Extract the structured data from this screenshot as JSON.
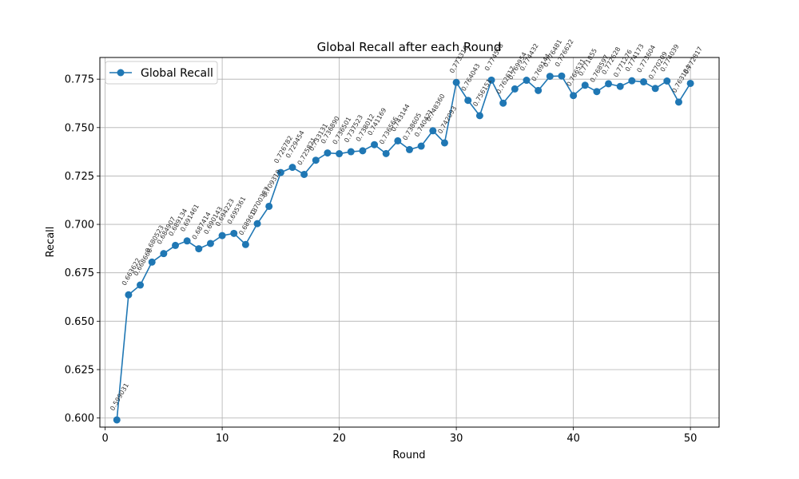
{
  "chart_data": {
    "type": "line",
    "title": "Global Recall after each Round",
    "xlabel": "Round",
    "ylabel": "Recall",
    "xlim": [
      -0.45,
      52.45
    ],
    "ylim": [
      0.5953,
      0.7862
    ],
    "xticks": [
      0,
      10,
      20,
      30,
      40,
      50
    ],
    "yticks": [
      0.6,
      0.625,
      0.65,
      0.675,
      0.7,
      0.725,
      0.75,
      0.775
    ],
    "ytick_labels": [
      "0.600",
      "0.625",
      "0.650",
      "0.675",
      "0.700",
      "0.725",
      "0.750",
      "0.775"
    ],
    "grid": true,
    "legend_position": "top-left",
    "color": "#1f77b4",
    "series": [
      {
        "name": "Global Recall",
        "x": [
          1,
          2,
          3,
          4,
          5,
          6,
          7,
          8,
          9,
          10,
          11,
          12,
          13,
          14,
          15,
          16,
          17,
          18,
          19,
          20,
          21,
          22,
          23,
          24,
          25,
          26,
          27,
          28,
          29,
          30,
          31,
          32,
          33,
          34,
          35,
          36,
          37,
          38,
          39,
          40,
          41,
          42,
          43,
          44,
          45,
          46,
          47,
          48,
          49,
          50
        ],
        "values": [
          0.599031,
          0.663622,
          0.668668,
          0.680523,
          0.684907,
          0.689134,
          0.691461,
          0.687414,
          0.690143,
          0.694223,
          0.695361,
          0.689613,
          0.700387,
          0.709319,
          0.726782,
          0.729454,
          0.725821,
          0.733131,
          0.73689,
          0.736501,
          0.737523,
          0.738012,
          0.741169,
          0.736566,
          0.743144,
          0.738605,
          0.740421,
          0.74836,
          0.742093,
          0.773316,
          0.764043,
          0.756151,
          0.774508,
          0.762617,
          0.769954,
          0.774432,
          0.769144,
          0.776481,
          0.776622,
          0.766531,
          0.771855,
          0.768597,
          0.772628,
          0.771276,
          0.774173,
          0.773604,
          0.770209,
          0.774039,
          0.763184,
          0.772817
        ],
        "labels": [
          "0.599031",
          "0.663622",
          "0.668668",
          "0.680523",
          "0.684907",
          "0.689134",
          "0.691461",
          "0.687414",
          "0.690143",
          "0.694223",
          "0.695361",
          "0.689613",
          "0.700387",
          "0.709319",
          "0.726782",
          "0.729454",
          "0.725821",
          "0.733131",
          "0.736890",
          "0.736501",
          "0.737523",
          "0.738012",
          "0.741169",
          "0.736566",
          "0.743144",
          "0.738605",
          "0.740421",
          "0.748360",
          "0.742093",
          "0.773316",
          "0.764043",
          "0.756151",
          "0.774508",
          "0.762617",
          "0.769954",
          "0.774432",
          "0.769144",
          "0.776481",
          "0.776622",
          "0.766531",
          "0.771855",
          "0.768597",
          "0.772628",
          "0.771276",
          "0.774173",
          "0.773604",
          "0.770209",
          "0.774039",
          "0.763184",
          "0.772817"
        ]
      }
    ]
  }
}
